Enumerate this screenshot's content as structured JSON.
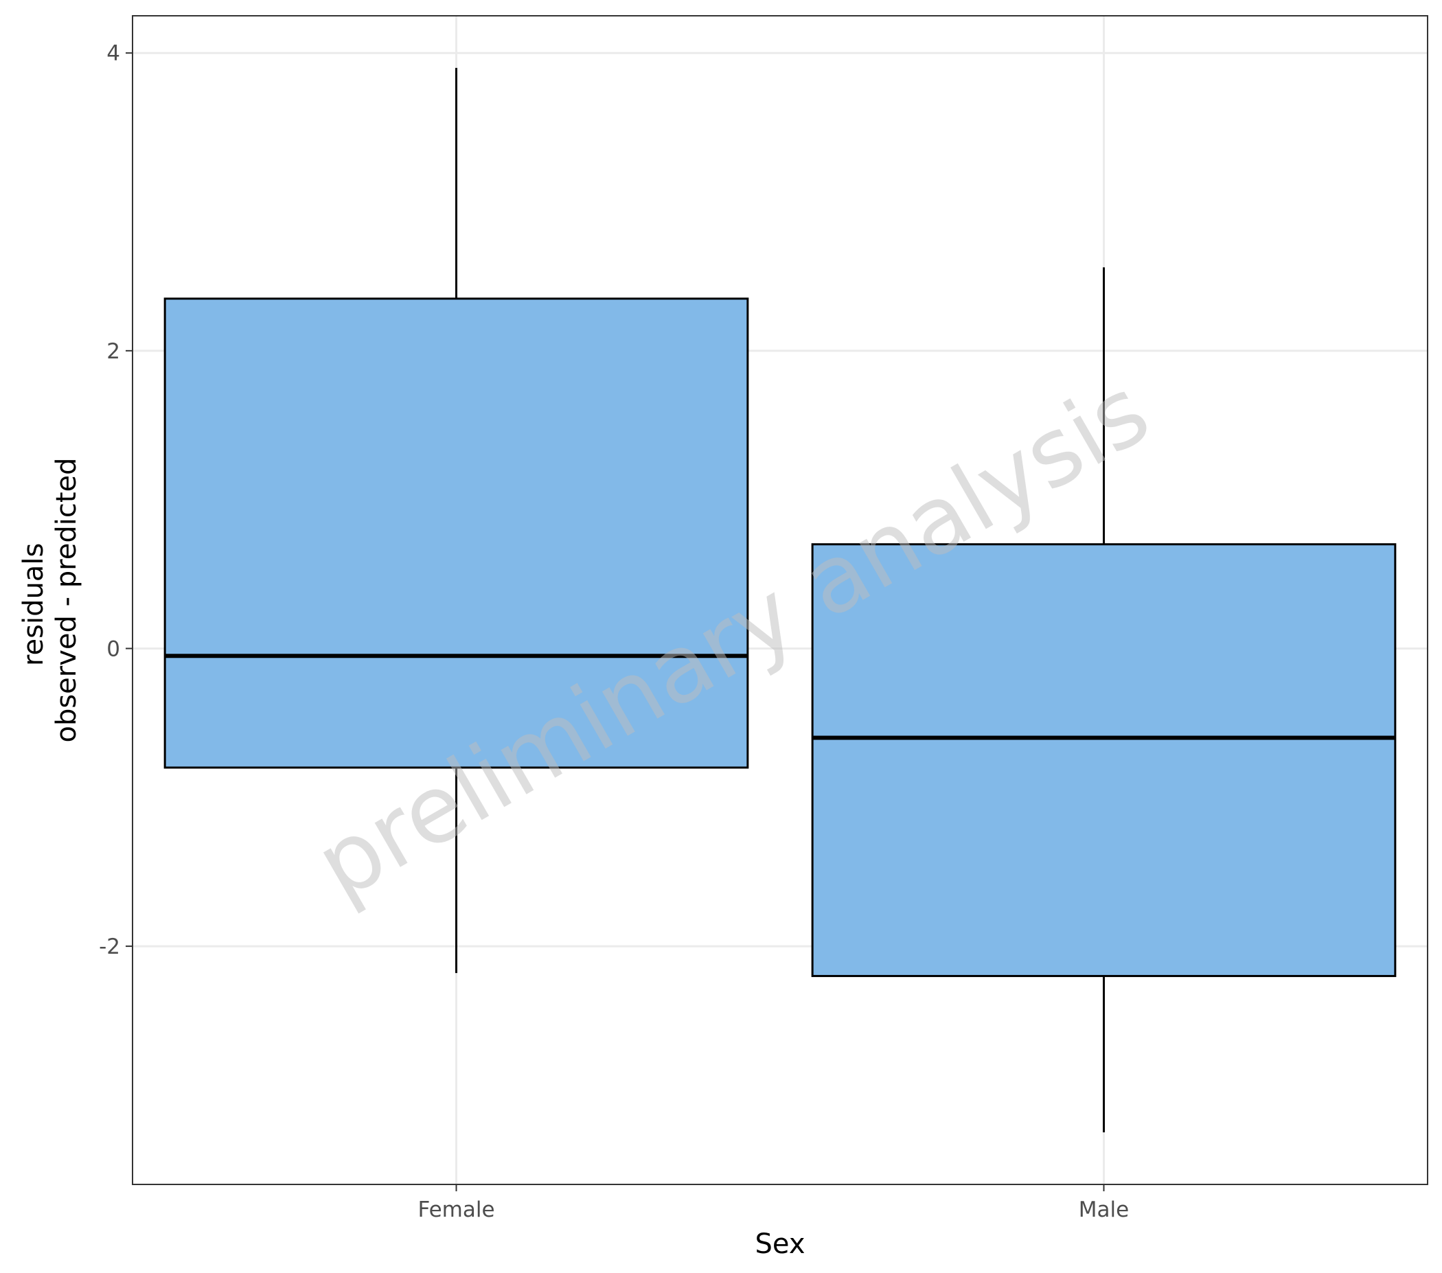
{
  "chart_data": {
    "type": "boxplot",
    "title": "",
    "xlabel": "Sex",
    "ylabel_lines": [
      "residuals",
      "observed - predicted"
    ],
    "categories": [
      "Female",
      "Male"
    ],
    "boxes": [
      {
        "name": "Female",
        "whisker_low": -2.18,
        "q1": -0.8,
        "median": -0.05,
        "q3": 2.35,
        "whisker_high": 3.9
      },
      {
        "name": "Male",
        "whisker_low": -3.25,
        "q1": -2.2,
        "median": -0.6,
        "q3": 0.7,
        "whisker_high": 2.56
      }
    ],
    "ylim": [
      -3.6,
      4.25
    ],
    "y_ticks": [
      -2,
      0,
      2,
      4
    ],
    "y_tick_labels": [
      "-2",
      "0",
      "2",
      "4"
    ],
    "grid": true,
    "legend": "none",
    "box_fill_color": "#82b9e8",
    "watermark": "preliminary analysis"
  }
}
